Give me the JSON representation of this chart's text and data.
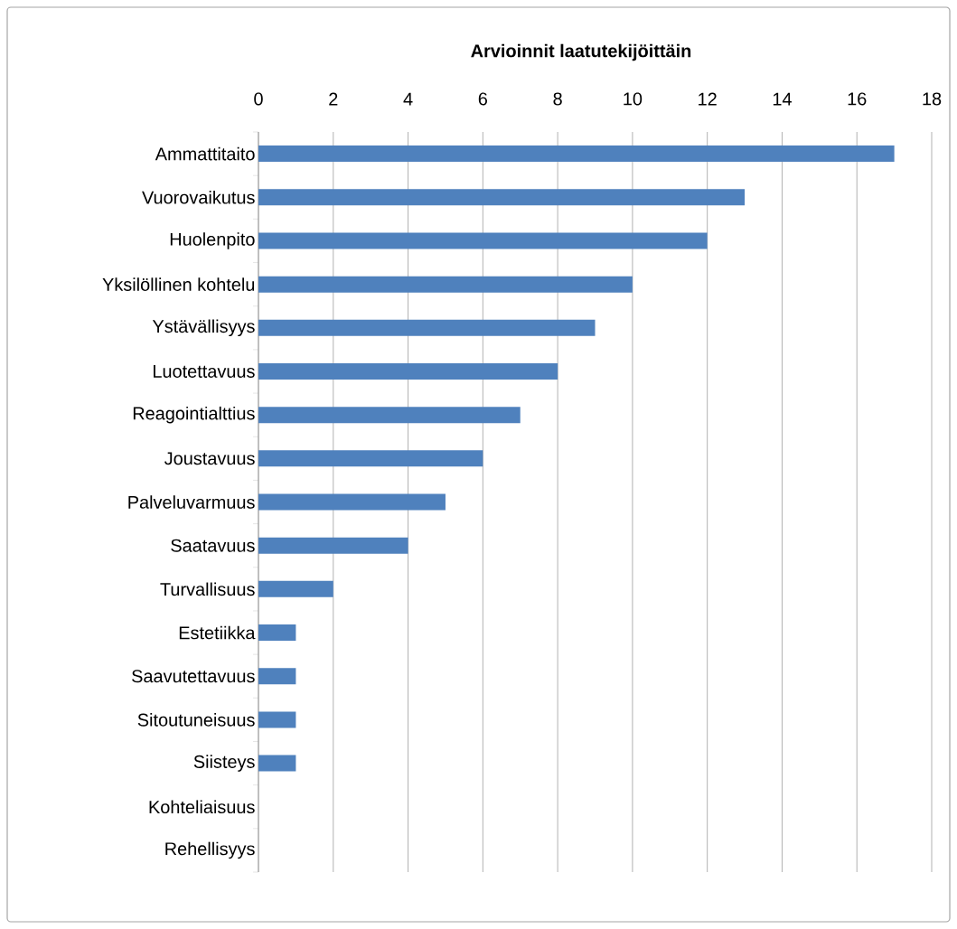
{
  "chart_data": {
    "type": "bar",
    "orientation": "horizontal",
    "title": "Arvioinnit laatutekijöittäin",
    "categories": [
      "Ammattitaito",
      "Vuorovaikutus",
      "Huolenpito",
      "Yksilöllinen kohtelu",
      "Ystävällisyys",
      "Luotettavuus",
      "Reagointialttius",
      "Joustavuus",
      "Palveluvarmuus",
      "Saatavuus",
      "Turvallisuus",
      "Estetiikka",
      "Saavutettavuus",
      "Sitoutuneisuus",
      "Siisteys",
      "Kohteliaisuus",
      "Rehellisyys"
    ],
    "values": [
      17,
      13,
      12,
      10,
      9,
      8,
      7,
      6,
      5,
      4,
      2,
      1,
      1,
      1,
      1,
      0,
      0
    ],
    "color": "#4f81bd",
    "xlim": [
      0,
      18
    ],
    "xticks": [
      0,
      2,
      4,
      6,
      8,
      10,
      12,
      14,
      16,
      18
    ],
    "grid": "x"
  }
}
